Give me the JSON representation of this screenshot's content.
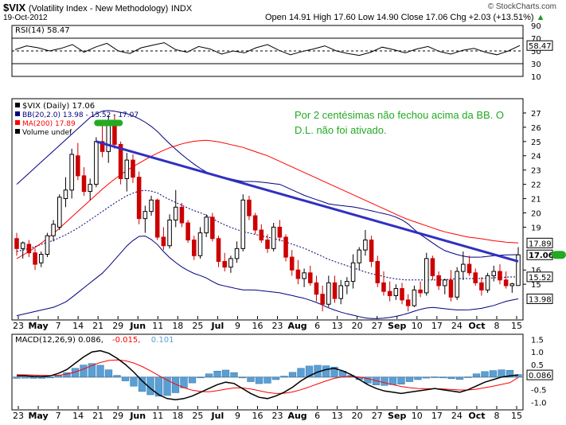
{
  "header": {
    "symbol": "$VIX",
    "name": "(Volatility Index - New Methodology)",
    "exchange": "INDX",
    "date": "19-Oct-2012",
    "ohlc": "Open 14.91  High 17.60  Low 14.90  Close 17.06  Chg +2.03 (+13.51%)",
    "trend_arrow": "▲",
    "watermark": "© StockCharts.com"
  },
  "colors": {
    "price_axis_highlight": "#000000",
    "bb_line": "#000080",
    "ma200_line": "#ff0000",
    "trendline": "#3030c0",
    "annotation_text": "#22aa22",
    "annotation_marker": "#22aa22",
    "candle_up": "#000000",
    "candle_down": "#cc0000",
    "volume_bar": "#5a9fd4"
  },
  "annotation": {
    "line1": "Por 2 centésimas não fechou acima da BB. O",
    "line2": "D.L. não foi ativado."
  },
  "chart_data": [
    {
      "type": "line",
      "title": "RSI(14) 58.47",
      "panel": "rsi",
      "ylim": [
        10,
        90
      ],
      "y_ticks": [
        90,
        70,
        50,
        30,
        10
      ],
      "last_value": 58.47,
      "last_value_label": "58.47",
      "guide_lines": [
        70,
        30
      ],
      "series": [
        {
          "values": [
            52,
            58,
            55,
            50,
            54,
            60,
            48,
            56,
            62,
            50,
            46,
            55,
            59,
            63,
            52,
            48,
            57,
            53,
            45,
            50,
            47,
            55,
            60,
            51,
            44,
            49,
            53,
            58,
            50,
            46,
            43,
            48,
            56,
            52,
            47,
            53,
            57,
            49,
            45,
            51,
            54,
            48,
            44,
            50,
            58.47
          ]
        }
      ]
    },
    {
      "type": "candlestick",
      "title": "$VIX (Daily) 17.06",
      "panel": "price",
      "ylim": [
        12.5,
        28
      ],
      "y_ticks": [
        27,
        26,
        25,
        24,
        23,
        22,
        21,
        20,
        19,
        17.89,
        17.06,
        16,
        15.52,
        15,
        13.98
      ],
      "legend": [
        {
          "name": "$VIX (Daily) 17.06",
          "color": "#000000"
        },
        {
          "name": "BB(20,2.0) 13.98 - 15.52 - 17.07",
          "color": "#000080"
        },
        {
          "name": "MA(200) 17.89",
          "color": "#ff0000"
        },
        {
          "name": "Volume undef",
          "color": "#000000"
        }
      ],
      "axis_tags": [
        {
          "value": 17.89,
          "label": "17.89",
          "style": "plain"
        },
        {
          "value": 17.06,
          "label": "17.06",
          "style": "bold"
        },
        {
          "value": 15.52,
          "label": "15.52",
          "style": "plain"
        },
        {
          "value": 13.98,
          "label": "13.98",
          "style": "plain"
        }
      ],
      "x_labels": [
        "23",
        "May",
        "7",
        "14",
        "21",
        "29",
        "Jun",
        "11",
        "18",
        "25",
        "Jul",
        "9",
        "16",
        "23",
        "Aug",
        "6",
        "13",
        "20",
        "27",
        "Sep",
        "10",
        "17",
        "24",
        "Oct",
        "8",
        "15"
      ],
      "x_label_index": [
        0,
        1,
        2,
        3,
        4,
        5,
        6,
        7,
        8,
        9,
        10,
        11,
        12,
        13,
        14,
        15,
        16,
        17,
        18,
        19,
        20,
        21,
        22,
        23,
        24,
        25
      ],
      "x_bold": [
        "May",
        "Jun",
        "Jul",
        "Aug",
        "Sep",
        "Oct"
      ],
      "candles": [
        [
          18.2,
          18.6,
          17.0,
          17.5
        ],
        [
          17.5,
          18.0,
          16.8,
          17.9
        ],
        [
          17.8,
          18.1,
          16.9,
          17.2
        ],
        [
          17.2,
          17.5,
          16.0,
          16.4
        ],
        [
          16.5,
          17.3,
          16.2,
          17.1
        ],
        [
          17.1,
          18.6,
          16.9,
          18.4
        ],
        [
          18.4,
          19.5,
          18.0,
          19.2
        ],
        [
          19.0,
          21.3,
          18.8,
          21.1
        ],
        [
          21.0,
          22.5,
          20.4,
          21.6
        ],
        [
          21.6,
          24.5,
          21.0,
          24.1
        ],
        [
          24.0,
          24.9,
          22.3,
          22.6
        ],
        [
          22.6,
          23.2,
          21.2,
          21.5
        ],
        [
          21.5,
          22.4,
          20.9,
          22.0
        ],
        [
          22.0,
          25.3,
          21.8,
          25.0
        ],
        [
          25.0,
          26.1,
          23.9,
          24.3
        ],
        [
          24.3,
          26.8,
          23.5,
          26.2
        ],
        [
          26.2,
          26.9,
          24.5,
          24.8
        ],
        [
          24.8,
          25.0,
          22.0,
          22.4
        ],
        [
          22.4,
          24.2,
          21.5,
          23.7
        ],
        [
          23.7,
          24.1,
          22.1,
          22.5
        ],
        [
          22.5,
          22.9,
          19.2,
          19.6
        ],
        [
          19.6,
          20.5,
          18.6,
          20.1
        ],
        [
          20.1,
          21.2,
          19.8,
          20.9
        ],
        [
          20.9,
          21.0,
          18.1,
          18.3
        ],
        [
          18.3,
          19.0,
          17.4,
          17.7
        ],
        [
          17.7,
          19.9,
          17.5,
          19.5
        ],
        [
          19.5,
          21.6,
          19.0,
          20.4
        ],
        [
          20.4,
          20.7,
          19.0,
          19.3
        ],
        [
          19.3,
          19.5,
          17.9,
          18.1
        ],
        [
          18.1,
          18.4,
          16.7,
          17.0
        ],
        [
          17.0,
          19.0,
          16.8,
          18.6
        ],
        [
          18.6,
          19.9,
          18.3,
          19.7
        ],
        [
          19.7,
          20.0,
          18.0,
          18.2
        ],
        [
          18.2,
          18.4,
          16.2,
          16.6
        ],
        [
          16.6,
          17.2,
          15.9,
          16.2
        ],
        [
          16.2,
          17.0,
          15.8,
          16.8
        ],
        [
          16.8,
          18.0,
          16.5,
          17.5
        ],
        [
          17.5,
          21.3,
          17.3,
          20.9
        ],
        [
          20.9,
          21.2,
          19.5,
          19.8
        ],
        [
          19.8,
          20.0,
          18.5,
          18.8
        ],
        [
          18.8,
          19.2,
          17.9,
          18.1
        ],
        [
          18.1,
          18.5,
          17.2,
          17.5
        ],
        [
          17.5,
          19.3,
          17.3,
          19.0
        ],
        [
          19.0,
          19.5,
          18.0,
          18.3
        ],
        [
          18.3,
          18.5,
          16.6,
          16.9
        ],
        [
          16.9,
          17.4,
          15.6,
          16.0
        ],
        [
          16.0,
          16.7,
          15.0,
          15.4
        ],
        [
          15.4,
          16.1,
          14.8,
          15.8
        ],
        [
          15.8,
          16.3,
          14.9,
          15.1
        ],
        [
          15.1,
          15.6,
          13.8,
          14.3
        ],
        [
          14.3,
          14.9,
          13.1,
          13.6
        ],
        [
          13.6,
          15.6,
          13.4,
          15.1
        ],
        [
          15.1,
          15.6,
          13.7,
          14.0
        ],
        [
          14.0,
          15.3,
          13.6,
          14.9
        ],
        [
          14.9,
          15.5,
          14.3,
          15.2
        ],
        [
          15.2,
          17.1,
          14.7,
          16.5
        ],
        [
          16.5,
          17.6,
          16.0,
          17.4
        ],
        [
          17.4,
          18.8,
          17.0,
          18.1
        ],
        [
          18.1,
          18.4,
          16.2,
          16.6
        ],
        [
          16.6,
          17.0,
          14.8,
          15.1
        ],
        [
          15.1,
          15.9,
          14.2,
          14.5
        ],
        [
          14.5,
          15.2,
          13.8,
          14.2
        ],
        [
          14.2,
          15.0,
          13.9,
          14.7
        ],
        [
          14.7,
          15.1,
          13.6,
          13.9
        ],
        [
          13.9,
          14.3,
          13.1,
          13.5
        ],
        [
          13.5,
          14.9,
          13.4,
          14.6
        ],
        [
          14.6,
          15.2,
          14.1,
          14.4
        ],
        [
          14.4,
          17.2,
          14.2,
          16.8
        ],
        [
          16.8,
          17.0,
          15.3,
          15.6
        ],
        [
          15.6,
          15.9,
          14.6,
          14.9
        ],
        [
          14.9,
          15.4,
          14.3,
          15.3
        ],
        [
          15.3,
          16.0,
          13.8,
          14.1
        ],
        [
          14.1,
          16.2,
          13.9,
          15.9
        ],
        [
          15.9,
          17.3,
          15.3,
          16.4
        ],
        [
          16.4,
          17.0,
          15.6,
          15.8
        ],
        [
          15.8,
          16.1,
          14.9,
          15.1
        ],
        [
          15.1,
          15.5,
          14.2,
          14.6
        ],
        [
          14.6,
          15.8,
          14.4,
          15.6
        ],
        [
          15.6,
          16.3,
          15.2,
          15.9
        ],
        [
          15.9,
          16.4,
          15.0,
          15.3
        ],
        [
          15.3,
          15.9,
          14.7,
          14.9
        ],
        [
          14.9,
          15.1,
          14.4,
          15.03
        ],
        [
          14.91,
          17.6,
          14.9,
          17.06
        ]
      ],
      "bb_upper": [
        22.0,
        22.8,
        23.6,
        24.4,
        25.2,
        26.0,
        26.8,
        27.2,
        27.1,
        26.9,
        26.5,
        25.9,
        25.0,
        24.2,
        23.5,
        22.9,
        22.6,
        22.4,
        22.2,
        22.2,
        22.1,
        22.0,
        21.6,
        21.2,
        20.9,
        20.6,
        20.5,
        20.4,
        20.2,
        20.0,
        19.8,
        19.4,
        18.6,
        18.0,
        17.4,
        17.1,
        16.9,
        16.9,
        17.0,
        17.06,
        17.07
      ],
      "bb_middle": [
        17.3,
        17.5,
        17.8,
        18.1,
        18.5,
        19.0,
        19.6,
        20.2,
        20.8,
        21.3,
        21.6,
        21.5,
        21.0,
        20.6,
        20.2,
        19.9,
        19.4,
        19.0,
        18.7,
        18.5,
        18.3,
        18.1,
        17.8,
        17.5,
        17.1,
        16.7,
        16.4,
        16.1,
        15.8,
        15.6,
        15.4,
        15.3,
        15.3,
        15.3,
        15.3,
        15.4,
        15.4,
        15.4,
        15.45,
        15.5,
        15.52
      ],
      "bb_lower": [
        12.8,
        13.0,
        13.2,
        13.4,
        13.8,
        14.5,
        15.2,
        15.9,
        16.9,
        17.9,
        18.5,
        18.0,
        17.0,
        16.3,
        15.8,
        15.5,
        15.0,
        14.8,
        14.6,
        14.6,
        14.5,
        14.4,
        14.2,
        14.0,
        13.7,
        13.3,
        13.0,
        12.8,
        12.6,
        12.6,
        12.7,
        12.9,
        13.2,
        13.4,
        13.3,
        13.2,
        13.2,
        13.3,
        13.5,
        13.8,
        13.98
      ],
      "ma200": [
        16.8,
        17.3,
        17.9,
        18.6,
        19.4,
        20.2,
        21.0,
        21.8,
        22.5,
        23.1,
        23.6,
        24.1,
        24.5,
        24.8,
        25.0,
        25.1,
        25.0,
        24.8,
        24.6,
        24.3,
        24.0,
        23.6,
        23.2,
        22.8,
        22.4,
        22.0,
        21.6,
        21.2,
        20.8,
        20.4,
        20.0,
        19.6,
        19.3,
        19.0,
        18.7,
        18.5,
        18.3,
        18.2,
        18.05,
        17.95,
        17.89
      ],
      "trendline": [
        [
          13,
          25.0
        ],
        [
          82,
          16.6
        ]
      ],
      "marker_index": 15,
      "marker_value": 26.3
    },
    {
      "type": "bar",
      "title": "MACD(12,26,9) 0.086, -0.015, 0.101",
      "panel": "macd",
      "ylim": [
        -1.3,
        1.7
      ],
      "y_ticks": [
        1.5,
        1.0,
        0.5,
        0.0,
        -0.5,
        -1.0
      ],
      "y_tick_labels": [
        "1.5",
        "1.0",
        "0.5",
        "",
        "-0.5",
        "-1.0"
      ],
      "last_value_label": "0.086",
      "legend": [
        {
          "name": "MACD(12,26,9) 0.086,",
          "color": "#000000"
        },
        {
          "name": " -0.015,",
          "color": "#ff0000"
        },
        {
          "name": " 0.101",
          "color": "#5a9fd4"
        }
      ],
      "x_labels": [
        "23",
        "May",
        "7",
        "14",
        "21",
        "29",
        "Jun",
        "11",
        "18",
        "25",
        "Jul",
        "9",
        "16",
        "23",
        "Aug",
        "6",
        "13",
        "20",
        "27",
        "Sep",
        "10",
        "17",
        "24",
        "Oct",
        "8",
        "15"
      ],
      "macd": [
        0.05,
        0.05,
        0.03,
        0.02,
        0.05,
        0.15,
        0.3,
        0.55,
        0.8,
        1.0,
        1.05,
        0.95,
        0.75,
        0.5,
        0.2,
        -0.15,
        -0.45,
        -0.7,
        -0.85,
        -0.9,
        -0.85,
        -0.75,
        -0.6,
        -0.45,
        -0.3,
        -0.2,
        -0.25,
        -0.45,
        -0.65,
        -0.8,
        -0.85,
        -0.75,
        -0.6,
        -0.4,
        -0.15,
        0.05,
        0.2,
        0.3,
        0.35,
        0.25,
        0.1,
        -0.1,
        -0.3,
        -0.45,
        -0.55,
        -0.6,
        -0.65,
        -0.6,
        -0.55,
        -0.5,
        -0.45,
        -0.5,
        -0.55,
        -0.6,
        -0.5,
        -0.35,
        -0.2,
        -0.1,
        0.0,
        0.05,
        0.086
      ],
      "signal": [
        0.1,
        0.09,
        0.08,
        0.07,
        0.06,
        0.07,
        0.12,
        0.2,
        0.32,
        0.46,
        0.58,
        0.66,
        0.68,
        0.65,
        0.56,
        0.42,
        0.25,
        0.06,
        -0.12,
        -0.28,
        -0.42,
        -0.52,
        -0.57,
        -0.58,
        -0.54,
        -0.48,
        -0.43,
        -0.43,
        -0.47,
        -0.54,
        -0.61,
        -0.65,
        -0.64,
        -0.59,
        -0.5,
        -0.39,
        -0.27,
        -0.15,
        -0.05,
        0.01,
        0.03,
        0.0,
        -0.06,
        -0.14,
        -0.22,
        -0.3,
        -0.37,
        -0.42,
        -0.45,
        -0.46,
        -0.46,
        -0.47,
        -0.49,
        -0.51,
        -0.51,
        -0.48,
        -0.42,
        -0.36,
        -0.29,
        -0.22,
        -0.015
      ],
      "histogram": [
        -0.05,
        -0.04,
        -0.05,
        -0.05,
        -0.01,
        0.08,
        0.18,
        0.35,
        0.48,
        0.54,
        0.47,
        0.29,
        0.07,
        -0.15,
        -0.36,
        -0.57,
        -0.7,
        -0.76,
        -0.73,
        -0.62,
        -0.43,
        -0.23,
        -0.03,
        0.13,
        0.24,
        0.28,
        0.18,
        -0.02,
        -0.18,
        -0.26,
        -0.24,
        -0.1,
        0.04,
        0.19,
        0.35,
        0.44,
        0.47,
        0.45,
        0.4,
        0.24,
        0.07,
        -0.1,
        -0.24,
        -0.31,
        -0.33,
        -0.3,
        -0.28,
        -0.18,
        -0.1,
        -0.04,
        0.01,
        -0.03,
        -0.06,
        -0.09,
        0.01,
        0.13,
        0.22,
        0.26,
        0.29,
        0.27,
        0.101
      ]
    }
  ]
}
